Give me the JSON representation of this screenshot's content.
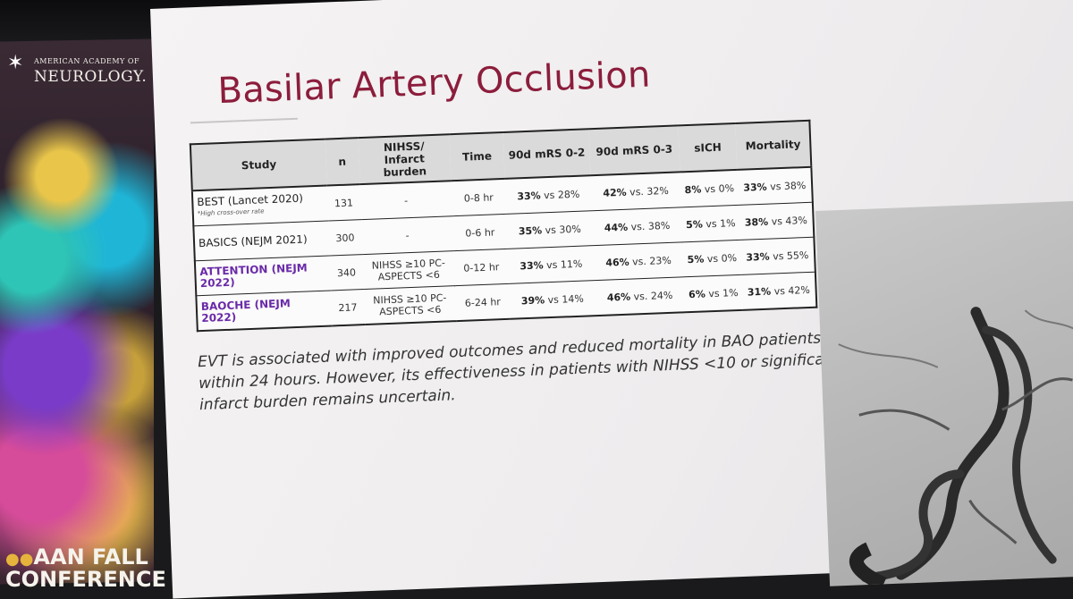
{
  "organization": {
    "logo_top": "AMERICAN ACADEMY OF",
    "logo_main": "NEUROLOGY.",
    "conference": "AAN FALL",
    "conference_line2": "CONFERENCE"
  },
  "slide": {
    "title": "Basilar Artery Occlusion",
    "columns": [
      "Study",
      "n",
      "NIHSS/ Infarct burden",
      "Time",
      "90d mRS 0-2",
      "90d mRS 0-3",
      "sICH",
      "Mortality"
    ],
    "rows": [
      {
        "study": "BEST (Lancet 2020)",
        "study_note": "*High cross-over rate",
        "n": "131",
        "nihss": "-",
        "time": "0-8 hr",
        "mrs02_a": "33%",
        "mrs02_b": "vs 28%",
        "mrs03_a": "42%",
        "mrs03_b": "vs. 32%",
        "sich_a": "8%",
        "sich_b": "vs 0%",
        "mort_a": "33%",
        "mort_b": "vs 38%"
      },
      {
        "study": "BASICS (NEJM 2021)",
        "study_note": "",
        "n": "300",
        "nihss": "-",
        "time": "0-6 hr",
        "mrs02_a": "35%",
        "mrs02_b": "vs 30%",
        "mrs03_a": "44%",
        "mrs03_b": "vs. 38%",
        "sich_a": "5%",
        "sich_b": "vs 1%",
        "mort_a": "38%",
        "mort_b": "vs 43%"
      },
      {
        "study": "ATTENTION (NEJM 2022)",
        "study_note": "",
        "n": "340",
        "nihss": "NIHSS ≥10 PC-ASPECTS <6",
        "time": "0-12 hr",
        "mrs02_a": "33%",
        "mrs02_b": "vs 11%",
        "mrs03_a": "46%",
        "mrs03_b": "vs. 23%",
        "sich_a": "5%",
        "sich_b": "vs 0%",
        "mort_a": "33%",
        "mort_b": "vs 55%"
      },
      {
        "study": "BAOCHE (NEJM 2022)",
        "study_note": "",
        "n": "217",
        "nihss": "NIHSS ≥10 PC-ASPECTS <6",
        "time": "6-24 hr",
        "mrs02_a": "39%",
        "mrs02_b": "vs 14%",
        "mrs03_a": "46%",
        "mrs03_b": "vs. 24%",
        "sich_a": "6%",
        "sich_b": "vs 1%",
        "mort_a": "31%",
        "mort_b": "vs 42%"
      }
    ],
    "conclusion": "EVT is associated with improved outcomes and reduced mortality in BAO patients within 24 hours. However, its effectiveness in patients with NIHSS <10 or significant infarct burden remains uncertain."
  },
  "colors": {
    "title": "#8c1d3c",
    "highlight_study": "#6a2aa8",
    "table_header_bg": "#dbdadb"
  }
}
